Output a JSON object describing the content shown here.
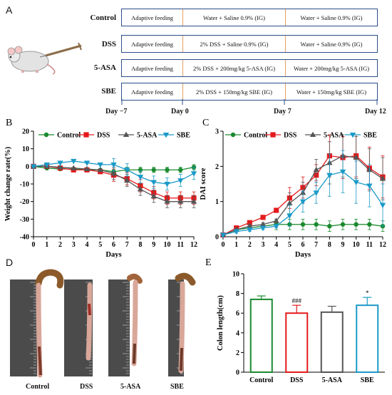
{
  "panel_A": {
    "letter": "A",
    "groups": [
      {
        "label": "Control",
        "segments": [
          "Adaptive feeding",
          "Water + Saline 0.9% (IG)",
          "Water + Saline 0.9% (IG)"
        ]
      },
      {
        "label": "DSS",
        "segments": [
          "Adaptive feeding",
          "2% DSS + Saline 0.9% (IG)",
          "Water + Saline 0.9% (IG)"
        ]
      },
      {
        "label": "5-ASA",
        "segments": [
          "Adaptive feeding",
          "2% DSS + 200mg/kg 5-ASA (IG)",
          "Water + 200mg/kg 5-ASA (IG)"
        ]
      },
      {
        "label": "SBE",
        "segments": [
          "Adaptive feeding",
          "2% DSS + 150mg/kg SBE (IG)",
          "Water + 150mg/kg SBE (IG)"
        ]
      }
    ],
    "days": [
      "Day −7",
      "Day 0",
      "Day 7",
      "Day 12"
    ],
    "colors": {
      "border": "#2a4e8a",
      "divider": "#e8a060"
    }
  },
  "panel_D": {
    "letter": "D",
    "labels": [
      "Control",
      "DSS",
      "5-ASA",
      "SBE"
    ]
  },
  "chart_data": [
    {
      "panel": "B",
      "type": "line",
      "xlabel": "Days",
      "ylabel": "Weight change rate(%)",
      "x": [
        0,
        1,
        2,
        3,
        4,
        5,
        6,
        7,
        8,
        9,
        10,
        11,
        12
      ],
      "xlim": [
        0,
        12
      ],
      "ylim": [
        -40,
        20
      ],
      "yticks": [
        -40,
        -30,
        -20,
        -10,
        0,
        10,
        20
      ],
      "legend": "top",
      "series": [
        {
          "name": "Control",
          "color": "#1a8a2e",
          "marker": "circle",
          "values": [
            0,
            -1,
            -1.5,
            -1.5,
            -2,
            -2,
            -3,
            -2,
            -2,
            -2,
            -2,
            -2,
            -0.5
          ]
        },
        {
          "name": "DSS",
          "color": "#e41a1c",
          "marker": "square",
          "values": [
            0,
            0,
            -1,
            -2,
            -2,
            -3,
            -5,
            -7,
            -11,
            -15,
            -18,
            -18,
            -18
          ]
        },
        {
          "name": "5-ASA",
          "color": "#555555",
          "marker": "triangle-up",
          "values": [
            0,
            0,
            -0.5,
            -1,
            -1.5,
            -2,
            -4,
            -8,
            -13,
            -17,
            -20,
            -20,
            -20
          ]
        },
        {
          "name": "SBE",
          "color": "#1a9ac8",
          "marker": "triangle-down",
          "values": [
            0,
            1,
            2,
            3,
            2,
            1,
            1,
            -2,
            -6,
            -9,
            -10,
            -8,
            -4
          ]
        }
      ]
    },
    {
      "panel": "C",
      "type": "line",
      "xlabel": "Days",
      "ylabel": "DAI score",
      "x": [
        0,
        1,
        2,
        3,
        4,
        5,
        6,
        7,
        8,
        9,
        10,
        11,
        12
      ],
      "xlim": [
        0,
        12
      ],
      "ylim": [
        0,
        3
      ],
      "yticks": [
        0,
        1,
        2,
        3
      ],
      "legend": "top",
      "series": [
        {
          "name": "Control",
          "color": "#1a8a2e",
          "marker": "circle",
          "values": [
            0.05,
            0.2,
            0.25,
            0.3,
            0.35,
            0.35,
            0.35,
            0.35,
            0.3,
            0.35,
            0.35,
            0.35,
            0.3
          ]
        },
        {
          "name": "DSS",
          "color": "#e41a1c",
          "marker": "square",
          "values": [
            0.05,
            0.25,
            0.4,
            0.55,
            0.75,
            1.1,
            1.4,
            1.75,
            2.3,
            2.25,
            2.3,
            1.95,
            1.7
          ]
        },
        {
          "name": "5-ASA",
          "color": "#555555",
          "marker": "triangle-up",
          "values": [
            0.05,
            0.2,
            0.3,
            0.35,
            0.45,
            0.95,
            1.25,
            1.9,
            2.1,
            2.3,
            2.25,
            1.9,
            1.65
          ]
        },
        {
          "name": "SBE",
          "color": "#1a9ac8",
          "marker": "triangle-down",
          "values": [
            0.05,
            0.15,
            0.2,
            0.25,
            0.3,
            0.6,
            1.0,
            1.25,
            1.75,
            1.85,
            1.55,
            1.45,
            0.9
          ]
        }
      ]
    },
    {
      "panel": "E",
      "type": "bar",
      "categories": [
        "Control",
        "DSS",
        "5-ASA",
        "SBE"
      ],
      "values": [
        7.4,
        6.0,
        6.1,
        6.8
      ],
      "errors": [
        0.35,
        0.8,
        0.6,
        0.8
      ],
      "colors": [
        "#1a8a2e",
        "#e41a1c",
        "#555555",
        "#1a9ac8"
      ],
      "annotations": [
        "",
        "###",
        "",
        "*"
      ],
      "ylabel": "Colon length(cm)",
      "ylim": [
        0,
        10
      ],
      "yticks": [
        0,
        2,
        4,
        6,
        8,
        10
      ]
    }
  ]
}
